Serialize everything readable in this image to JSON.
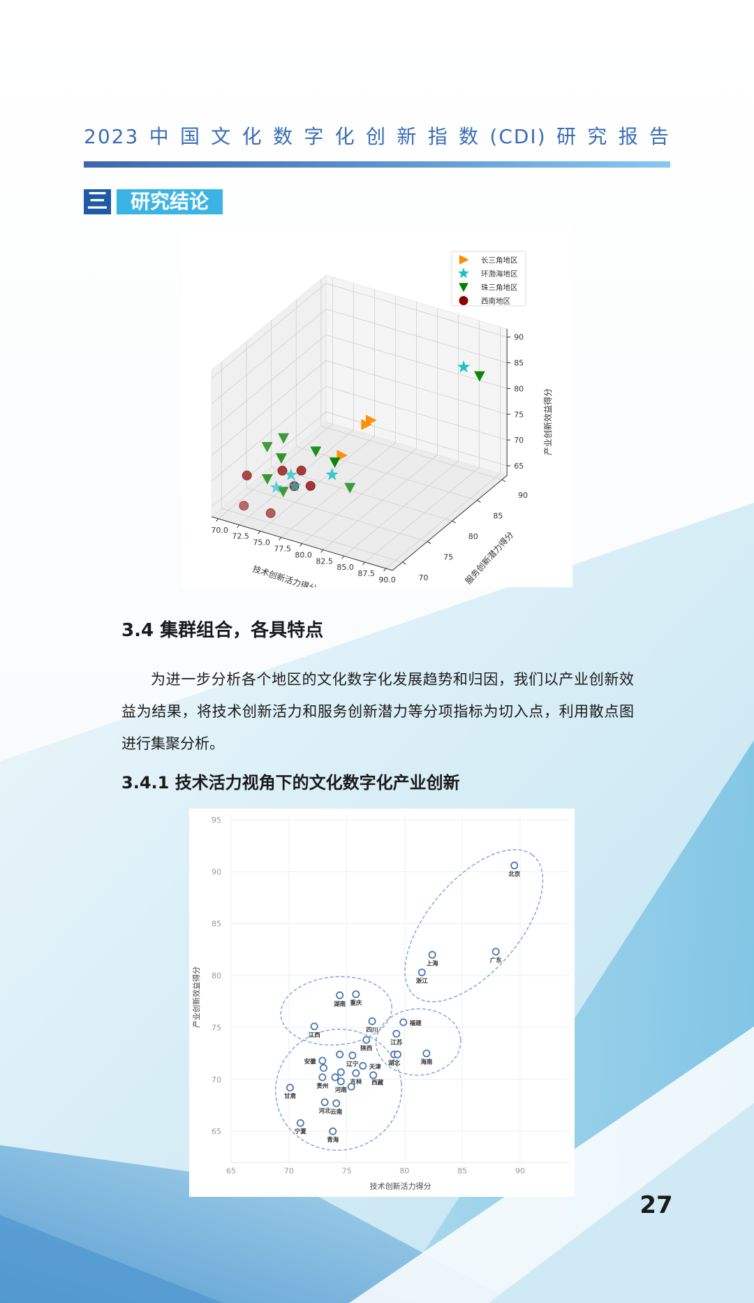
{
  "header": {
    "title": "2023中国文化数字化创新指数(CDI)研究报告"
  },
  "section": {
    "number": "三",
    "label": "研究结论"
  },
  "heading_3_4": "3.4 集群组合，各具特点",
  "paragraph": "为进一步分析各个地区的文化数字化发展趋势和归因，我们以产业创新效益为结果，将技术创新活力和服务创新潜力等分项指标为切入点，利用散点图进行集聚分析。",
  "heading_3_4_1": "3.4.1 技术活力视角下的文化数字化产业创新",
  "page_number": "27",
  "chart_data": [
    {
      "type": "scatter3d",
      "xlabel": "技术创新活力得分",
      "ylabel": "服务创新潜力得分",
      "zlabel": "产业创新效益得分",
      "xlim": [
        69.2,
        90.8
      ],
      "ylim": [
        68,
        91
      ],
      "zlim": [
        63.1,
        91.6
      ],
      "xticks": [
        "70.0",
        "72.5",
        "75.0",
        "77.5",
        "80.0",
        "82.5",
        "85.0",
        "87.5",
        "90.0"
      ],
      "yticks": [
        "70",
        "75",
        "80",
        "85",
        "90"
      ],
      "zticks": [
        "65",
        "70",
        "75",
        "80",
        "85",
        "90"
      ],
      "grid": true,
      "legend_position": "top-right",
      "series": [
        {
          "name": "长三角地区",
          "marker": "triangle-right",
          "color": "#ff8c00",
          "points": [
            [
              80.0,
              81.8,
              76
            ],
            [
              79.5,
              81.7,
              75
            ],
            [
              77.9,
              79.5,
              70
            ]
          ]
        },
        {
          "name": "环渤海地区",
          "marker": "star",
          "color": "#17bfc4",
          "points": [
            [
              90.5,
              82.8,
              90.6
            ],
            [
              76.6,
              71.5,
              72
            ],
            [
              80.2,
              73.7,
              72
            ],
            [
              76.1,
              69.4,
              71
            ],
            [
              77.6,
              70.6,
              71
            ]
          ]
        },
        {
          "name": "珠三角地区",
          "marker": "triangle-down",
          "color": "#008000",
          "points": [
            [
              88.3,
              89.7,
              82.3
            ],
            [
              75.3,
              72.2,
              78
            ],
            [
              73.7,
              71.6,
              76
            ],
            [
              74.5,
              73.1,
              73
            ],
            [
              77.9,
              74.3,
              75
            ],
            [
              79.1,
              76.1,
              72
            ],
            [
              73.3,
              72.3,
              69
            ],
            [
              75.5,
              71.8,
              68
            ],
            [
              83.4,
              71.9,
              72.5
            ]
          ]
        },
        {
          "name": "西南地区",
          "marker": "circle",
          "color": "#8b0000",
          "points": [
            [
              71.7,
              70.9,
              70
            ],
            [
              75.4,
              71.8,
              72
            ],
            [
              77.6,
              71.9,
              73
            ],
            [
              77.0,
              71.5,
              70
            ],
            [
              78.4,
              72.4,
              70
            ],
            [
              73.0,
              68.1,
              67
            ],
            [
              75.6,
              69.1,
              66
            ]
          ]
        }
      ]
    },
    {
      "type": "scatter",
      "xlabel": "技术创新活力得分",
      "ylabel": "产业创新效益得分",
      "xlim": [
        65,
        94.3
      ],
      "ylim": [
        62,
        95.5
      ],
      "xticks": [
        "65",
        "70",
        "75",
        "80",
        "85",
        "90"
      ],
      "yticks": [
        "65",
        "70",
        "75",
        "80",
        "85",
        "90",
        "95"
      ],
      "grid": true,
      "point_color": "#4a78b0",
      "cluster_outline_color": "#7e9fd8",
      "points": [
        {
          "label": "北京",
          "x": 89.5,
          "y": 90.6
        },
        {
          "label": "广东",
          "x": 87.9,
          "y": 82.3
        },
        {
          "label": "上海",
          "x": 82.4,
          "y": 82.0
        },
        {
          "label": "浙江",
          "x": 81.5,
          "y": 80.3
        },
        {
          "label": "湖南",
          "x": 74.4,
          "y": 78.1
        },
        {
          "label": "重庆",
          "x": 75.8,
          "y": 78.2
        },
        {
          "label": "江西",
          "x": 72.2,
          "y": 75.1
        },
        {
          "label": "四川",
          "x": 77.2,
          "y": 75.6
        },
        {
          "label": "陕西",
          "x": 76.7,
          "y": 73.8
        },
        {
          "label": "福建",
          "x": 79.9,
          "y": 75.5
        },
        {
          "label": "江苏",
          "x": 79.3,
          "y": 74.4
        },
        {
          "label": "湖北",
          "x": 79.1,
          "y": 72.4
        },
        {
          "label": "",
          "x": 79.4,
          "y": 72.4
        },
        {
          "label": "海南",
          "x": 81.9,
          "y": 72.5
        },
        {
          "label": "",
          "x": 74.4,
          "y": 72.4
        },
        {
          "label": "辽宁",
          "x": 75.5,
          "y": 72.3
        },
        {
          "label": "天津",
          "x": 76.4,
          "y": 71.3
        },
        {
          "label": "安徽",
          "x": 72.9,
          "y": 71.8
        },
        {
          "label": "",
          "x": 73.0,
          "y": 71.1
        },
        {
          "label": "贵州",
          "x": 72.9,
          "y": 70.2
        },
        {
          "label": "",
          "x": 74.0,
          "y": 70.2
        },
        {
          "label": "",
          "x": 74.5,
          "y": 70.7
        },
        {
          "label": "河南",
          "x": 74.5,
          "y": 69.8
        },
        {
          "label": "吉林",
          "x": 75.8,
          "y": 70.6
        },
        {
          "label": "西藏",
          "x": 77.3,
          "y": 70.4
        },
        {
          "label": "",
          "x": 75.4,
          "y": 69.3
        },
        {
          "label": "甘肃",
          "x": 70.1,
          "y": 69.2
        },
        {
          "label": "河北",
          "x": 73.1,
          "y": 67.8
        },
        {
          "label": "云南",
          "x": 74.1,
          "y": 67.7
        },
        {
          "label": "宁夏",
          "x": 71.0,
          "y": 65.8
        },
        {
          "label": "青海",
          "x": 73.8,
          "y": 65.0
        }
      ]
    }
  ]
}
